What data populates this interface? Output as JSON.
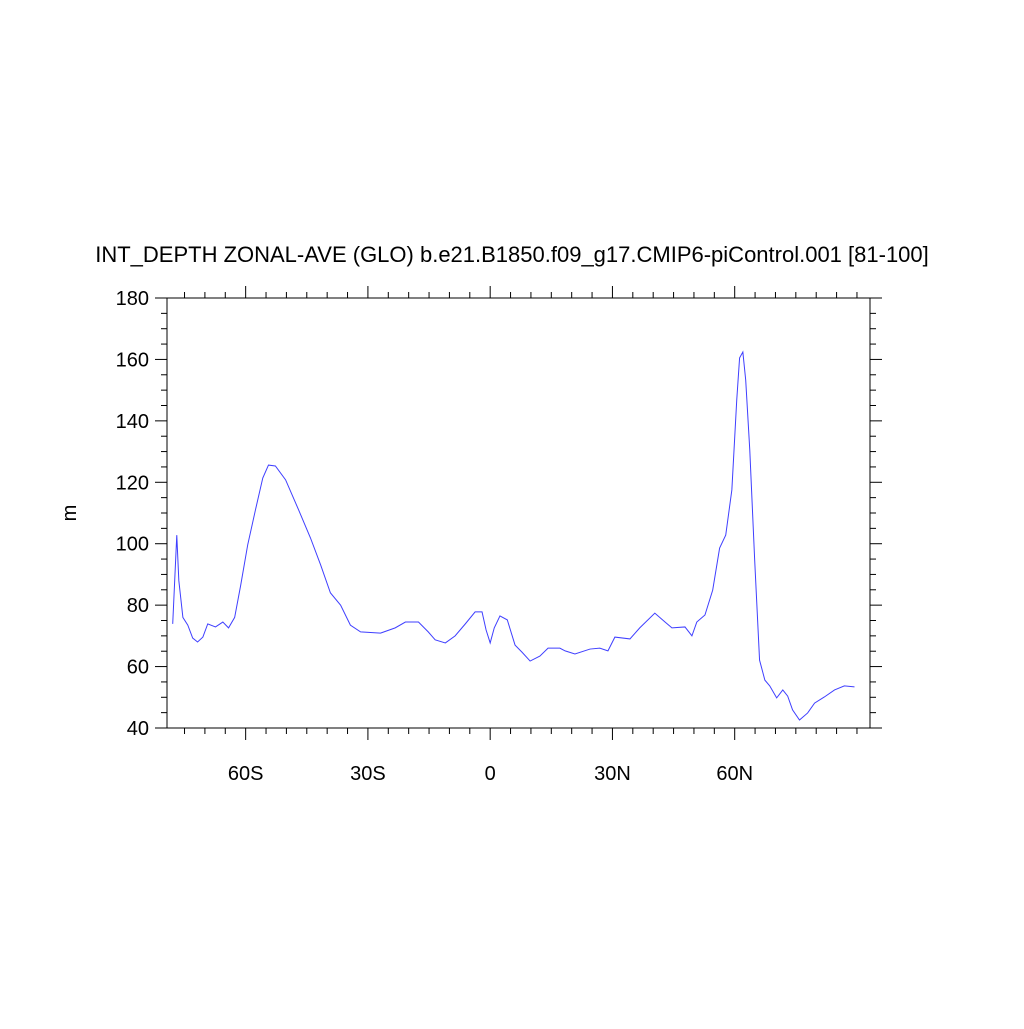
{
  "chart_data": {
    "type": "line",
    "title": "INT_DEPTH ZONAL-AVE (GLO) b.e21.B1850.f09_g17.CMIP6-piControl.001 [81-100]",
    "y_label": "m",
    "x": [
      -77.9,
      -76.9,
      -76.4,
      -75.4,
      -74.2,
      -73,
      -71.8,
      -70.5,
      -69.3,
      -67.4,
      -65.6,
      -64.2,
      -62.7,
      -61.2,
      -59.5,
      -57.6,
      -55.8,
      -54.4,
      -52.7,
      -50.2,
      -47,
      -44.1,
      -41.6,
      -39.2,
      -36.7,
      -34.3,
      -31.8,
      -26.9,
      -23.3,
      -20.8,
      -17.6,
      -15.2,
      -13.5,
      -11,
      -8.6,
      -6.1,
      -3.7,
      -2,
      -1,
      0,
      1,
      2.4,
      4.2,
      6.1,
      7.8,
      9.8,
      12.2,
      14.2,
      17.1,
      18.4,
      20.8,
      24.5,
      26.9,
      28.9,
      30.6,
      34.3,
      36.7,
      40.4,
      42.9,
      44.6,
      47.8,
      49.5,
      50.7,
      52.7,
      54.6,
      56.3,
      57.8,
      59.3,
      60.5,
      61.2,
      62,
      62.7,
      63.7,
      64.9,
      66.1,
      67.4,
      68.6,
      70.3,
      71.8,
      73,
      74.2,
      75.9,
      77.9,
      79.6,
      82,
      84.5,
      86.9,
      89.4
    ],
    "series": [
      {
        "color": "#3f3fff",
        "values": [
          73.9,
          102.8,
          88,
          76,
          73.5,
          69.3,
          68,
          69.6,
          73.9,
          72.9,
          74.5,
          72.6,
          76,
          86.6,
          99.6,
          111,
          121.4,
          125.6,
          125.3,
          120.8,
          111,
          101.9,
          93.1,
          84,
          80,
          73.5,
          71.3,
          70.9,
          72.6,
          74.5,
          74.5,
          71.3,
          68.7,
          67.7,
          70,
          73.9,
          77.8,
          77.8,
          71.9,
          67.7,
          72.6,
          76.5,
          75.2,
          67,
          64.7,
          61.8,
          63.4,
          66,
          66,
          65.1,
          64.1,
          65.7,
          66,
          65.1,
          69.6,
          69,
          72.6,
          77.4,
          74.5,
          72.6,
          72.9,
          70,
          74.5,
          76.8,
          84.9,
          98.6,
          102.8,
          117.5,
          146.8,
          160.5,
          162.4,
          153.3,
          130.5,
          94.7,
          62.1,
          55.6,
          53.7,
          49.8,
          52.4,
          50.4,
          45.9,
          42.6,
          44.9,
          48.1,
          50.1,
          52.4,
          53.7,
          53.4
        ]
      }
    ],
    "xlim": [
      -79.3,
      93.2
    ],
    "xticks": [
      {
        "value": -60,
        "label": "60S"
      },
      {
        "value": -30,
        "label": "30S"
      },
      0,
      {
        "value": 30,
        "label": "30N"
      },
      {
        "value": 60,
        "label": "60N"
      }
    ],
    "xminor_ticks": [
      -75,
      -70,
      -65,
      -55,
      -50,
      -45,
      -40,
      -35,
      -25,
      -20,
      -15,
      -10,
      -5,
      5,
      10,
      15,
      20,
      25,
      35,
      40,
      45,
      50,
      55,
      65,
      70,
      75,
      80,
      85,
      90
    ],
    "ylim": [
      40,
      180
    ],
    "yticks": [
      40,
      60,
      80,
      100,
      120,
      140,
      160,
      180
    ],
    "yminor_ticks": [
      45,
      50,
      55,
      65,
      70,
      75,
      85,
      90,
      95,
      105,
      110,
      115,
      125,
      130,
      135,
      145,
      150,
      155,
      165,
      170,
      175
    ]
  }
}
